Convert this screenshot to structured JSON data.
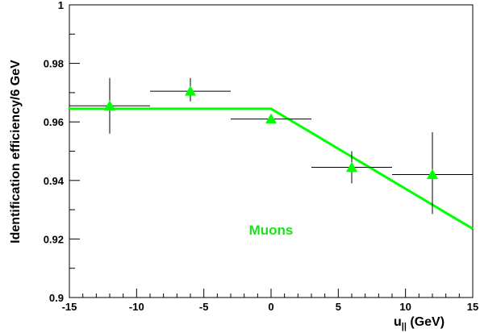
{
  "chart_data": {
    "type": "scatter",
    "xlabel": "u",
    "xlabel_sub": "||",
    "xlabel_unit": " (GeV)",
    "ylabel": "Identification efficiency/6 GeV",
    "xlim": [
      -15,
      15
    ],
    "ylim": [
      0.9,
      1.0
    ],
    "x_ticks": [
      -15,
      -10,
      -5,
      0,
      5,
      10,
      15
    ],
    "x_tick_labels": [
      "-15",
      "-10",
      "-5",
      "0",
      "5",
      "10",
      "15"
    ],
    "y_ticks": [
      0.9,
      0.92,
      0.94,
      0.96,
      0.98,
      1.0
    ],
    "y_tick_labels": [
      "0.9",
      "0.92",
      "0.94",
      "0.96",
      "0.98",
      "1"
    ],
    "grid": false,
    "series": [
      {
        "name": "Muons",
        "color": "#00ff00",
        "marker": "triangle-up",
        "x": [
          -12,
          -6,
          0,
          6,
          12
        ],
        "x_err": [
          3,
          3,
          3,
          3,
          3
        ],
        "y": [
          0.9655,
          0.9705,
          0.961,
          0.9445,
          0.942
        ],
        "y_err_low": [
          0.0095,
          0.0035,
          0.0015,
          0.0055,
          0.0135
        ],
        "y_err_high": [
          0.0095,
          0.0045,
          0.0015,
          0.0055,
          0.0145
        ]
      }
    ],
    "fit_line": {
      "color": "#00ff00",
      "points": [
        [
          -15,
          0.9645
        ],
        [
          0,
          0.9645
        ],
        [
          15,
          0.9235
        ]
      ]
    },
    "annotation": {
      "text": "Muons",
      "color": "#22dd22",
      "x": 0,
      "y": 0.9215
    }
  }
}
